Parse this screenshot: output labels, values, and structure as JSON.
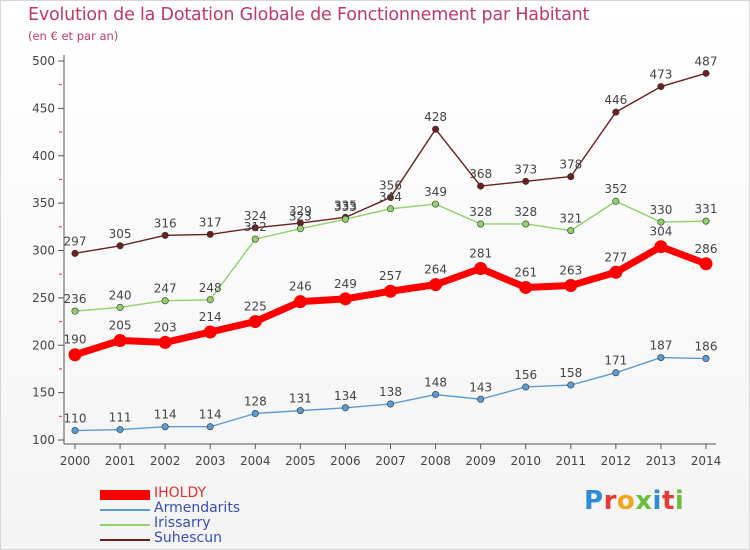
{
  "title": "Evolution de la Dotation Globale de Fonctionnement par Habitant",
  "subtitle": "(en € et par an)",
  "logo": "Proxiti",
  "chart_data": {
    "type": "line",
    "title": "Evolution de la Dotation Globale de Fonctionnement par Habitant",
    "subtitle": "(en € et par an)",
    "xlabel": "",
    "ylabel": "",
    "x": [
      2000,
      2001,
      2002,
      2003,
      2004,
      2005,
      2006,
      2007,
      2008,
      2009,
      2010,
      2011,
      2012,
      2013,
      2014
    ],
    "ylim": [
      100,
      500
    ],
    "yticks": [
      100,
      150,
      200,
      250,
      300,
      350,
      400,
      450,
      500
    ],
    "grid": false,
    "legend_position": "bottom-left",
    "series": [
      {
        "name": "IHOLDY",
        "color": "#ff0000",
        "values": [
          190,
          205,
          203,
          214,
          225,
          246,
          249,
          257,
          264,
          281,
          261,
          263,
          277,
          304,
          286
        ]
      },
      {
        "name": "Armendarits",
        "color": "#5b9bd5",
        "values": [
          110,
          111,
          114,
          114,
          128,
          131,
          134,
          138,
          148,
          143,
          156,
          158,
          171,
          187,
          186
        ]
      },
      {
        "name": "Irissarry",
        "color": "#8fd16a",
        "values": [
          236,
          240,
          247,
          248,
          312,
          323,
          333,
          344,
          349,
          328,
          328,
          321,
          352,
          330,
          331
        ]
      },
      {
        "name": "Suhescun",
        "color": "#6b1f1f",
        "values": [
          297,
          305,
          316,
          317,
          324,
          329,
          335,
          356,
          428,
          368,
          373,
          378,
          446,
          473,
          487
        ]
      }
    ],
    "data_labels": [
      {
        "series": "IHOLDY",
        "labels": [
          "190",
          "205",
          "203",
          "214",
          "225",
          "246",
          "249",
          "257",
          "264",
          "281",
          "261",
          "263",
          "277",
          "304",
          "286"
        ]
      },
      {
        "series": "Armendarits",
        "labels": [
          "110",
          "111",
          "114",
          "114",
          "128",
          "131",
          "134",
          "138",
          "148",
          "143",
          "156",
          "158",
          "171",
          "187",
          "186"
        ]
      },
      {
        "series": "Irissarry",
        "labels": [
          "236",
          "240",
          "247",
          "248",
          "312",
          "323",
          "333",
          "344",
          "349",
          "328",
          "328",
          "321",
          "352",
          "330",
          "331"
        ]
      },
      {
        "series": "Suhescun",
        "labels": [
          "297",
          "305",
          "316",
          "317",
          "324",
          "329",
          "335",
          "356",
          "428",
          "368",
          "373",
          "378",
          "446",
          "473",
          "487"
        ]
      }
    ]
  }
}
